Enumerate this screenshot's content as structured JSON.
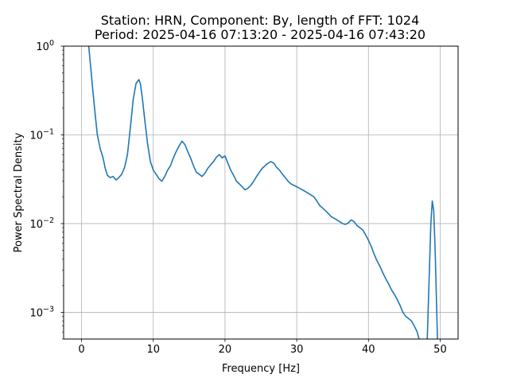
{
  "chart_data": {
    "type": "line",
    "title_line1": "Station: HRN, Component: By, length of FFT: 1024",
    "title_line2": "Period: 2025-04-16 07:13:20 - 2025-04-16 07:43:20",
    "xlabel": "Frequency [Hz]",
    "ylabel": "Power Spectral Density",
    "xlim": [
      -2.5,
      52.5
    ],
    "ylim": [
      0.0005,
      1
    ],
    "yscale": "log",
    "grid": true,
    "series_color": "#1f77b4",
    "xticks": [
      {
        "value": 0,
        "label": "0"
      },
      {
        "value": 10,
        "label": "10"
      },
      {
        "value": 20,
        "label": "20"
      },
      {
        "value": 30,
        "label": "30"
      },
      {
        "value": 40,
        "label": "40"
      },
      {
        "value": 50,
        "label": "50"
      }
    ],
    "yticks": [
      {
        "value": 0.001,
        "mantissa": "10",
        "exp": "−3"
      },
      {
        "value": 0.01,
        "mantissa": "10",
        "exp": "−2"
      },
      {
        "value": 0.1,
        "mantissa": "10",
        "exp": "−1"
      },
      {
        "value": 1,
        "mantissa": "10",
        "exp": "0"
      }
    ],
    "series": [
      {
        "x": [
          1.0,
          1.3,
          1.6,
          1.9,
          2.2,
          2.6,
          3.0,
          3.3,
          3.6,
          4.0,
          4.4,
          4.8,
          5.2,
          5.6,
          6.0,
          6.4,
          6.8,
          7.2,
          7.6,
          8.0,
          8.2,
          8.5,
          8.8,
          9.2,
          9.6,
          10.0,
          10.4,
          10.8,
          11.2,
          11.6,
          12.0,
          12.4,
          12.8,
          13.2,
          13.6,
          14.0,
          14.4,
          14.8,
          15.2,
          15.6,
          16.0,
          16.4,
          16.8,
          17.2,
          17.6,
          18.0,
          18.4,
          18.8,
          19.2,
          19.6,
          20.0,
          20.4,
          20.8,
          21.2,
          21.6,
          22.0,
          22.4,
          22.8,
          23.2,
          23.6,
          24.0,
          24.4,
          24.8,
          25.2,
          25.6,
          26.0,
          26.4,
          26.8,
          27.2,
          27.6,
          28.0,
          28.4,
          28.8,
          29.2,
          29.6,
          30.0,
          30.4,
          30.8,
          31.2,
          31.6,
          32.0,
          32.4,
          32.8,
          33.2,
          33.6,
          34.0,
          34.4,
          34.8,
          35.2,
          35.6,
          36.0,
          36.4,
          36.8,
          37.2,
          37.6,
          38.0,
          38.4,
          38.8,
          39.2,
          39.6,
          40.0,
          40.4,
          40.8,
          41.2,
          41.6,
          42.0,
          42.4,
          42.8,
          43.2,
          43.6,
          44.0,
          44.4,
          44.8,
          45.2,
          45.6,
          46.0,
          46.4,
          46.8,
          47.2,
          47.6,
          47.9,
          48.2,
          48.5,
          48.7,
          48.9,
          49.1,
          49.3,
          49.5,
          49.7
        ],
        "y": [
          1.0,
          0.55,
          0.3,
          0.17,
          0.1,
          0.07,
          0.055,
          0.042,
          0.035,
          0.033,
          0.034,
          0.031,
          0.033,
          0.036,
          0.043,
          0.06,
          0.12,
          0.25,
          0.38,
          0.42,
          0.38,
          0.25,
          0.15,
          0.08,
          0.05,
          0.04,
          0.036,
          0.032,
          0.03,
          0.034,
          0.04,
          0.045,
          0.055,
          0.065,
          0.075,
          0.085,
          0.078,
          0.065,
          0.055,
          0.045,
          0.038,
          0.036,
          0.034,
          0.037,
          0.042,
          0.046,
          0.05,
          0.056,
          0.06,
          0.055,
          0.058,
          0.048,
          0.04,
          0.035,
          0.03,
          0.028,
          0.026,
          0.024,
          0.025,
          0.027,
          0.03,
          0.034,
          0.038,
          0.042,
          0.045,
          0.048,
          0.05,
          0.048,
          0.043,
          0.04,
          0.036,
          0.033,
          0.03,
          0.028,
          0.027,
          0.026,
          0.025,
          0.024,
          0.023,
          0.022,
          0.021,
          0.02,
          0.018,
          0.016,
          0.015,
          0.014,
          0.013,
          0.012,
          0.0115,
          0.011,
          0.0105,
          0.01,
          0.0098,
          0.0102,
          0.011,
          0.0105,
          0.0095,
          0.009,
          0.0085,
          0.0075,
          0.0065,
          0.0055,
          0.0045,
          0.0038,
          0.0033,
          0.0028,
          0.0024,
          0.0021,
          0.0018,
          0.0016,
          0.0014,
          0.0012,
          0.001,
          0.0009,
          0.00085,
          0.0008,
          0.0007,
          0.0006,
          0.00045,
          0.0003,
          0.0003,
          0.0005,
          0.003,
          0.01,
          0.018,
          0.014,
          0.005,
          0.0012,
          0.0003
        ]
      }
    ]
  }
}
